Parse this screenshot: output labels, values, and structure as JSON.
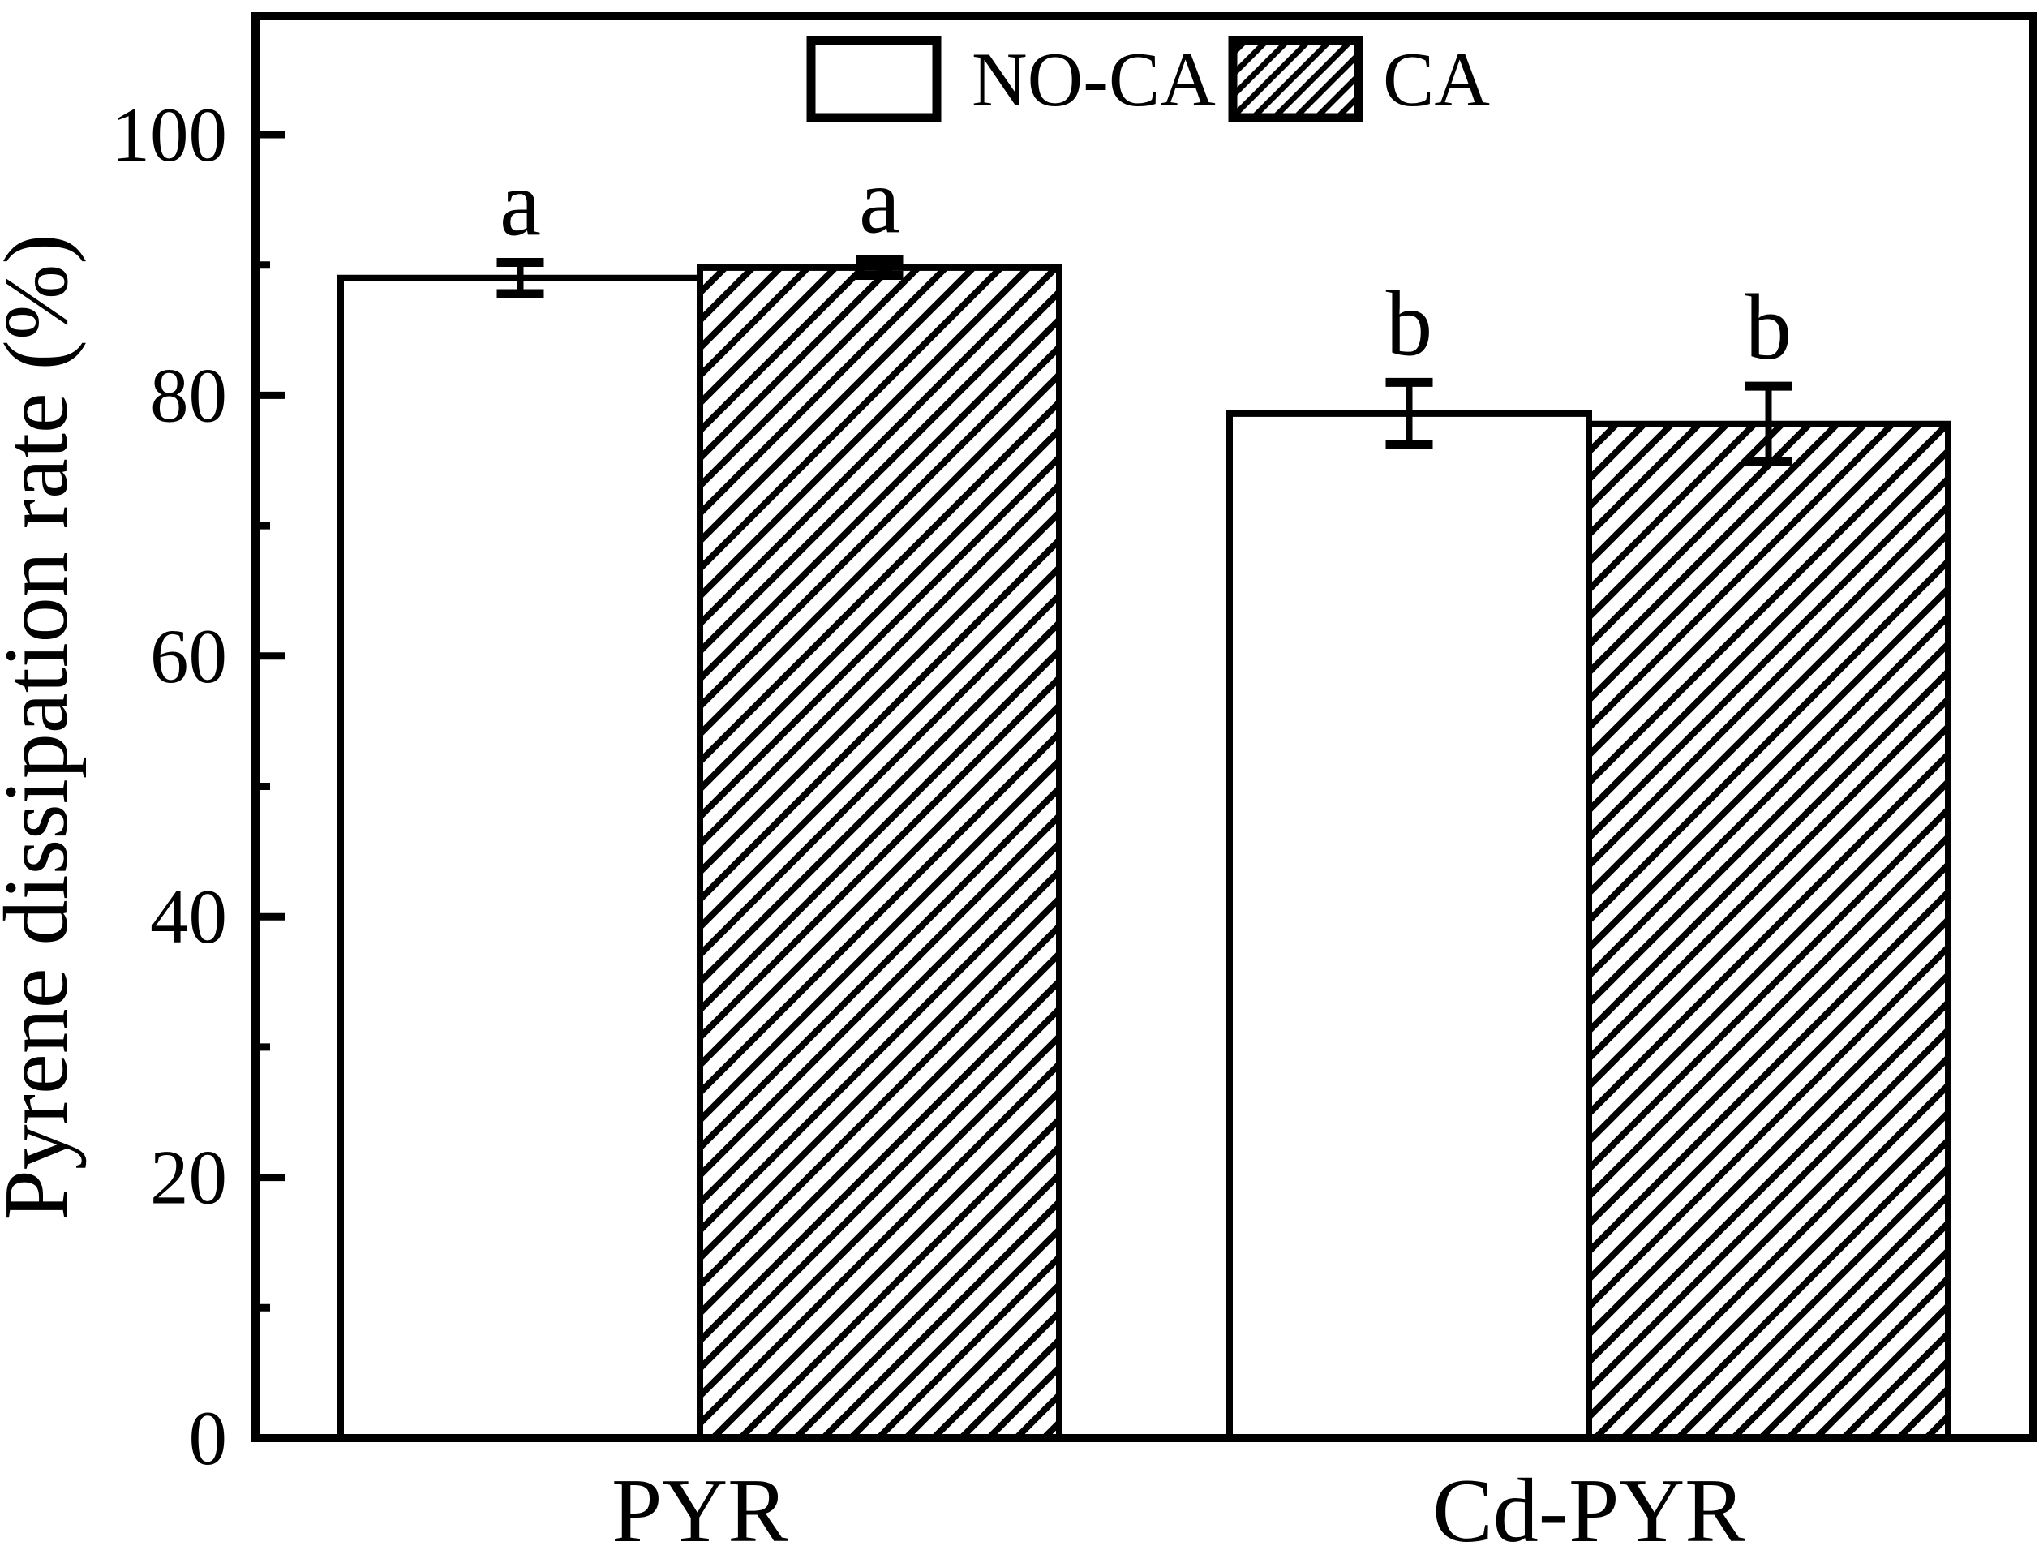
{
  "figure": {
    "background_color": "#ffffff",
    "ink_color": "#000000"
  },
  "chart_data": {
    "type": "bar",
    "title": "",
    "xlabel": "",
    "ylabel": "Pyrene dissipation rate (%)",
    "categories": [
      "PYR",
      "Cd-PYR"
    ],
    "series": [
      {
        "name": "NO-CA",
        "style": "solid-white",
        "values": [
          89.0,
          78.6
        ],
        "errors": [
          1.2,
          2.4
        ],
        "sig_letters": [
          "a",
          "b"
        ]
      },
      {
        "name": "CA",
        "style": "hatch-diagonal",
        "values": [
          89.8,
          77.8
        ],
        "errors": [
          0.6,
          2.9
        ],
        "sig_letters": [
          "a",
          "b"
        ]
      }
    ],
    "ylim": [
      0,
      109
    ],
    "yticks_major": [
      0,
      20,
      40,
      60,
      80,
      100
    ],
    "ytick_minor_step": 10,
    "grid": false,
    "error_bars": true,
    "legend_position": "top-center-inside",
    "bar_fill_color": "#ffffff",
    "bar_outline_color": "#000000"
  },
  "legend": {
    "items": [
      {
        "label": "NO-CA",
        "swatch": "solid-white"
      },
      {
        "label": "CA",
        "swatch": "hatch-diagonal"
      }
    ]
  }
}
